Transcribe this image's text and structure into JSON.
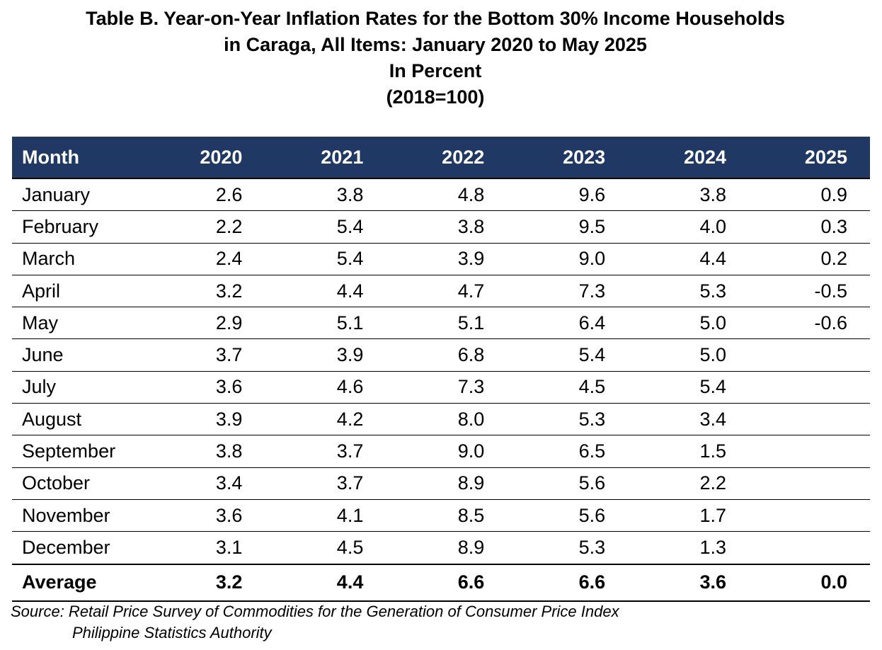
{
  "title": {
    "line1": "Table B. Year-on-Year Inflation Rates for the Bottom 30% Income Households",
    "line2": "in Caraga, All Items: January 2020 to May 2025",
    "line3": "In Percent",
    "line4": "(2018=100)"
  },
  "table": {
    "header_month": "Month",
    "years": [
      "2020",
      "2021",
      "2022",
      "2023",
      "2024",
      "2025"
    ],
    "rows": [
      {
        "month": "January",
        "values": [
          "2.6",
          "3.8",
          "4.8",
          "9.6",
          "3.8",
          "0.9"
        ]
      },
      {
        "month": "February",
        "values": [
          "2.2",
          "5.4",
          "3.8",
          "9.5",
          "4.0",
          "0.3"
        ]
      },
      {
        "month": "March",
        "values": [
          "2.4",
          "5.4",
          "3.9",
          "9.0",
          "4.4",
          "0.2"
        ]
      },
      {
        "month": "April",
        "values": [
          "3.2",
          "4.4",
          "4.7",
          "7.3",
          "5.3",
          "-0.5"
        ]
      },
      {
        "month": "May",
        "values": [
          "2.9",
          "5.1",
          "5.1",
          "6.4",
          "5.0",
          "-0.6"
        ]
      },
      {
        "month": "June",
        "values": [
          "3.7",
          "3.9",
          "6.8",
          "5.4",
          "5.0",
          ""
        ]
      },
      {
        "month": "July",
        "values": [
          "3.6",
          "4.6",
          "7.3",
          "4.5",
          "5.4",
          ""
        ]
      },
      {
        "month": "August",
        "values": [
          "3.9",
          "4.2",
          "8.0",
          "5.3",
          "3.4",
          ""
        ]
      },
      {
        "month": "September",
        "values": [
          "3.8",
          "3.7",
          "9.0",
          "6.5",
          "1.5",
          ""
        ]
      },
      {
        "month": "October",
        "values": [
          "3.4",
          "3.7",
          "8.9",
          "5.6",
          "2.2",
          ""
        ]
      },
      {
        "month": "November",
        "values": [
          "3.6",
          "4.1",
          "8.5",
          "5.6",
          "1.7",
          ""
        ]
      },
      {
        "month": "December",
        "values": [
          "3.1",
          "4.5",
          "8.9",
          "5.3",
          "1.3",
          ""
        ]
      }
    ],
    "average": {
      "label": "Average",
      "values": [
        "3.2",
        "4.4",
        "6.6",
        "6.6",
        "3.6",
        "0.0"
      ]
    }
  },
  "source": {
    "line1": "Source: Retail Price Survey of Commodities for the Generation of Consumer Price Index",
    "line2": "Philippine Statistics Authority"
  },
  "colors": {
    "header_background": "#1f3864",
    "header_text": "#ffffff"
  }
}
